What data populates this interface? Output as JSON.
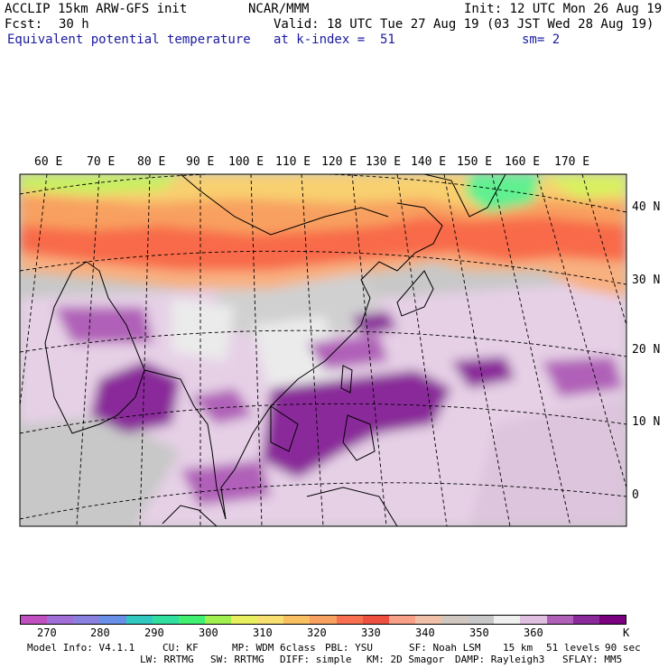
{
  "header": {
    "model": "ACCLIP 15km ARW-GFS init",
    "org": "NCAR/MMM",
    "init": "Init: 12 UTC Mon 26 Aug 19",
    "fcst_label": "Fcst:",
    "fcst_value": "30 h",
    "valid": "Valid: 18 UTC Tue 27 Aug 19 (03 JST Wed 28 Aug 19)",
    "field": "Equivalent potential temperature",
    "level": "at k-index =  51",
    "smoothing": "sm= 2"
  },
  "map": {
    "lon_labels": [
      "60 E",
      "70 E",
      "80 E",
      "90 E",
      "100 E",
      "110 E",
      "120 E",
      "130 E",
      "140 E",
      "150 E",
      "160 E",
      "170 E"
    ],
    "lat_labels": [
      "40 N",
      "30 N",
      "20 N",
      "10 N",
      "0"
    ]
  },
  "colorbar": {
    "colors": [
      "#c050c0",
      "#a070d8",
      "#8a80e0",
      "#6890e8",
      "#30c8c0",
      "#30e0a0",
      "#40f070",
      "#a0f050",
      "#e8f060",
      "#f8e070",
      "#f8c060",
      "#f8a060",
      "#f87050",
      "#f05040",
      "#f8a088",
      "#f0c0a8",
      "#d0c8c0",
      "#c8c8c8",
      "#f0f0f0",
      "#e0c0e0",
      "#b060b8",
      "#8a2a9a",
      "#7a0080"
    ],
    "labels": [
      "270",
      "280",
      "290",
      "300",
      "310",
      "320",
      "330",
      "340",
      "350",
      "360"
    ],
    "unit": "K"
  },
  "footer": {
    "line1": [
      {
        "text": "Model Info: V4.1.1"
      },
      {
        "text": "CU: KF"
      },
      {
        "text": "MP: WDM 6class"
      },
      {
        "text": "PBL: YSU"
      },
      {
        "text": "SF: Noah LSM"
      },
      {
        "text": "15 km"
      },
      {
        "text": "51 levels"
      },
      {
        "text": "90 sec"
      }
    ],
    "line2": [
      {
        "text": "LW: RRTMG"
      },
      {
        "text": "SW: RRTMG"
      },
      {
        "text": "DIFF: simple"
      },
      {
        "text": "KM: 2D Smagor"
      },
      {
        "text": "DAMP: Rayleigh3"
      },
      {
        "text": "SFLAY: MM5"
      }
    ]
  }
}
